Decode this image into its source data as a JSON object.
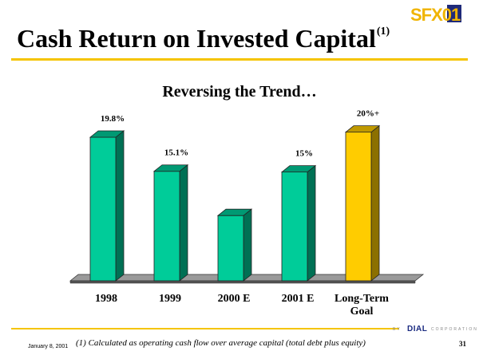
{
  "slide": {
    "title": "Cash Return on Invested Capital",
    "title_footnote_mark": "(1)",
    "subtitle": "Reversing the Trend…",
    "logo_text": "SFX01",
    "brand": {
      "prefix": "BY",
      "name": "DIAL",
      "suffix": "CORPORATION"
    },
    "date": "January 8, 2001",
    "footnote": "(1) Calculated as operating cash flow over average capital (total debt plus equity)",
    "page_number": "31",
    "accent_color": "#f5c400"
  },
  "chart_data": {
    "type": "bar",
    "title": "Reversing the Trend…",
    "categories": [
      "1998",
      "1999",
      "2000 E",
      "2001 E",
      "Long-Term Goal"
    ],
    "category_lines": [
      [
        "1998"
      ],
      [
        "1999"
      ],
      [
        "2000 E"
      ],
      [
        "2001 E"
      ],
      [
        "Long-Term",
        "Goal"
      ]
    ],
    "values": [
      19.8,
      15.1,
      9.0,
      15.0,
      20.5
    ],
    "data_labels": [
      "19.8%",
      "15.1%",
      "",
      "15%",
      "20%+"
    ],
    "bar_colors": [
      "#00cc99",
      "#00cc99",
      "#00cc99",
      "#00cc99",
      "#ffcc00"
    ],
    "ylim": [
      0,
      22
    ],
    "grid": false,
    "legend": "none"
  }
}
